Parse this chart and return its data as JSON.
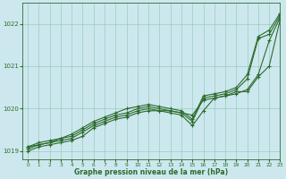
{
  "title": "Graphe pression niveau de la mer (hPa)",
  "bg_color": "#cce8ee",
  "grid_color": "#99ccbb",
  "line_color": "#2d6a2d",
  "xlim": [
    -0.5,
    23
  ],
  "ylim": [
    1018.8,
    1022.5
  ],
  "yticks": [
    1019,
    1020,
    1021,
    1022
  ],
  "xticks": [
    0,
    1,
    2,
    3,
    4,
    5,
    6,
    7,
    8,
    9,
    10,
    11,
    12,
    13,
    14,
    15,
    16,
    17,
    18,
    19,
    20,
    21,
    22,
    23
  ],
  "series": [
    [
      1019.0,
      1019.1,
      1019.15,
      1019.2,
      1019.25,
      1019.35,
      1019.55,
      1019.65,
      1019.75,
      1019.8,
      1019.9,
      1019.95,
      1019.95,
      1019.95,
      1019.9,
      1019.85,
      1020.2,
      1020.25,
      1020.3,
      1020.4,
      1020.4,
      1020.75,
      1021.0,
      1022.1
    ],
    [
      1019.05,
      1019.15,
      1019.2,
      1019.25,
      1019.3,
      1019.45,
      1019.6,
      1019.7,
      1019.8,
      1019.85,
      1019.95,
      1020.0,
      1019.95,
      1019.9,
      1019.85,
      1019.6,
      1019.95,
      1020.25,
      1020.3,
      1020.35,
      1020.45,
      1020.8,
      1021.6,
      1022.15
    ],
    [
      1019.1,
      1019.15,
      1019.2,
      1019.3,
      1019.35,
      1019.5,
      1019.65,
      1019.75,
      1019.85,
      1019.9,
      1020.0,
      1020.05,
      1020.0,
      1019.95,
      1019.9,
      1019.7,
      1020.25,
      1020.3,
      1020.35,
      1020.45,
      1020.7,
      1021.65,
      1021.75,
      1022.2
    ],
    [
      1019.1,
      1019.2,
      1019.25,
      1019.3,
      1019.4,
      1019.55,
      1019.7,
      1019.8,
      1019.9,
      1020.0,
      1020.05,
      1020.1,
      1020.05,
      1020.0,
      1019.95,
      1019.75,
      1020.3,
      1020.35,
      1020.4,
      1020.5,
      1020.8,
      1021.7,
      1021.85,
      1022.25
    ]
  ]
}
